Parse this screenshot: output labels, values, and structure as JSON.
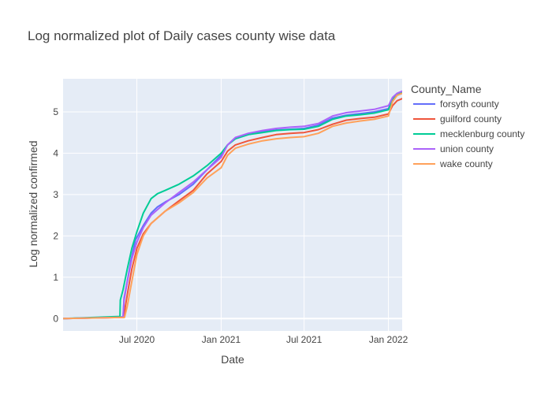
{
  "chart_data": {
    "type": "line",
    "title": "Log normalized plot of Daily cases county wise data",
    "xlabel": "Date",
    "ylabel": "Log normalized confirmed",
    "x_tick_labels": [
      "Jul 2020",
      "Jan 2021",
      "Jul 2021",
      "Jan 2022"
    ],
    "x_tick_dates": [
      "2020-07-01",
      "2021-01-01",
      "2021-07-01",
      "2022-01-01"
    ],
    "xlim": [
      "2020-01-22",
      "2022-01-31"
    ],
    "y_ticks": [
      0,
      1,
      2,
      3,
      4,
      5
    ],
    "ylim": [
      -0.3,
      5.8
    ],
    "grid": true,
    "legend_title": "County_Name",
    "legend_position": "right",
    "series": [
      {
        "name": "forsyth county",
        "color": "#636efa",
        "points": [
          [
            "2020-01-22",
            0
          ],
          [
            "2020-05-25",
            0.03
          ],
          [
            "2020-06-01",
            0.05
          ],
          [
            "2020-06-03",
            0.45
          ],
          [
            "2020-06-10",
            0.9
          ],
          [
            "2020-06-18",
            1.4
          ],
          [
            "2020-06-28",
            1.9
          ],
          [
            "2020-07-15",
            2.25
          ],
          [
            "2020-08-01",
            2.55
          ],
          [
            "2020-08-15",
            2.7
          ],
          [
            "2020-09-01",
            2.82
          ],
          [
            "2020-10-01",
            3.0
          ],
          [
            "2020-11-01",
            3.25
          ],
          [
            "2020-12-01",
            3.6
          ],
          [
            "2021-01-01",
            3.95
          ],
          [
            "2021-01-15",
            4.2
          ],
          [
            "2021-02-01",
            4.35
          ],
          [
            "2021-03-01",
            4.45
          ],
          [
            "2021-04-01",
            4.52
          ],
          [
            "2021-05-01",
            4.56
          ],
          [
            "2021-06-01",
            4.58
          ],
          [
            "2021-07-01",
            4.6
          ],
          [
            "2021-08-01",
            4.68
          ],
          [
            "2021-09-01",
            4.85
          ],
          [
            "2021-10-01",
            4.92
          ],
          [
            "2021-11-01",
            4.96
          ],
          [
            "2021-12-01",
            5.0
          ],
          [
            "2022-01-01",
            5.08
          ],
          [
            "2022-01-10",
            5.3
          ],
          [
            "2022-01-20",
            5.4
          ],
          [
            "2022-01-31",
            5.45
          ]
        ]
      },
      {
        "name": "guilford county",
        "color": "#ef553b",
        "points": [
          [
            "2020-01-22",
            0
          ],
          [
            "2020-06-03",
            0.03
          ],
          [
            "2020-06-06",
            0.3
          ],
          [
            "2020-06-12",
            0.7
          ],
          [
            "2020-06-20",
            1.2
          ],
          [
            "2020-07-01",
            1.7
          ],
          [
            "2020-07-15",
            2.05
          ],
          [
            "2020-08-01",
            2.3
          ],
          [
            "2020-09-01",
            2.6
          ],
          [
            "2020-10-01",
            2.85
          ],
          [
            "2020-11-01",
            3.1
          ],
          [
            "2020-12-01",
            3.5
          ],
          [
            "2021-01-01",
            3.8
          ],
          [
            "2021-01-15",
            4.05
          ],
          [
            "2021-02-01",
            4.2
          ],
          [
            "2021-03-01",
            4.3
          ],
          [
            "2021-04-01",
            4.38
          ],
          [
            "2021-05-01",
            4.45
          ],
          [
            "2021-06-01",
            4.48
          ],
          [
            "2021-07-01",
            4.5
          ],
          [
            "2021-08-01",
            4.57
          ],
          [
            "2021-09-01",
            4.7
          ],
          [
            "2021-10-01",
            4.8
          ],
          [
            "2021-11-01",
            4.84
          ],
          [
            "2021-12-01",
            4.87
          ],
          [
            "2022-01-01",
            4.95
          ],
          [
            "2022-01-10",
            5.15
          ],
          [
            "2022-01-20",
            5.27
          ],
          [
            "2022-01-31",
            5.32
          ]
        ]
      },
      {
        "name": "mecklenburg county",
        "color": "#00cc96",
        "points": [
          [
            "2020-01-22",
            0
          ],
          [
            "2020-05-25",
            0.05
          ],
          [
            "2020-05-26",
            0.45
          ],
          [
            "2020-06-01",
            0.7
          ],
          [
            "2020-06-10",
            1.2
          ],
          [
            "2020-06-20",
            1.7
          ],
          [
            "2020-07-01",
            2.1
          ],
          [
            "2020-07-15",
            2.55
          ],
          [
            "2020-08-01",
            2.9
          ],
          [
            "2020-08-15",
            3.02
          ],
          [
            "2020-09-01",
            3.1
          ],
          [
            "2020-10-01",
            3.25
          ],
          [
            "2020-11-01",
            3.45
          ],
          [
            "2020-12-01",
            3.7
          ],
          [
            "2021-01-01",
            4.0
          ],
          [
            "2021-01-15",
            4.2
          ],
          [
            "2021-02-01",
            4.35
          ],
          [
            "2021-03-01",
            4.45
          ],
          [
            "2021-04-01",
            4.5
          ],
          [
            "2021-05-01",
            4.55
          ],
          [
            "2021-06-01",
            4.57
          ],
          [
            "2021-07-01",
            4.58
          ],
          [
            "2021-08-01",
            4.65
          ],
          [
            "2021-09-01",
            4.82
          ],
          [
            "2021-10-01",
            4.9
          ],
          [
            "2021-11-01",
            4.93
          ],
          [
            "2021-12-01",
            4.97
          ],
          [
            "2022-01-01",
            5.05
          ],
          [
            "2022-01-10",
            5.3
          ],
          [
            "2022-01-20",
            5.42
          ],
          [
            "2022-01-31",
            5.47
          ]
        ]
      },
      {
        "name": "union county",
        "color": "#ab63fa",
        "points": [
          [
            "2020-01-22",
            0
          ],
          [
            "2020-06-01",
            0.03
          ],
          [
            "2020-06-03",
            0.5
          ],
          [
            "2020-06-12",
            1.0
          ],
          [
            "2020-06-20",
            1.45
          ],
          [
            "2020-07-01",
            1.85
          ],
          [
            "2020-07-15",
            2.2
          ],
          [
            "2020-08-01",
            2.5
          ],
          [
            "2020-09-01",
            2.8
          ],
          [
            "2020-10-01",
            3.05
          ],
          [
            "2020-11-01",
            3.3
          ],
          [
            "2020-12-01",
            3.6
          ],
          [
            "2021-01-01",
            3.9
          ],
          [
            "2021-01-15",
            4.2
          ],
          [
            "2021-02-01",
            4.38
          ],
          [
            "2021-03-01",
            4.48
          ],
          [
            "2021-04-01",
            4.55
          ],
          [
            "2021-05-01",
            4.6
          ],
          [
            "2021-06-01",
            4.63
          ],
          [
            "2021-07-01",
            4.65
          ],
          [
            "2021-08-01",
            4.72
          ],
          [
            "2021-09-01",
            4.9
          ],
          [
            "2021-10-01",
            4.98
          ],
          [
            "2021-11-01",
            5.02
          ],
          [
            "2021-12-01",
            5.06
          ],
          [
            "2022-01-01",
            5.15
          ],
          [
            "2022-01-10",
            5.35
          ],
          [
            "2022-01-20",
            5.45
          ],
          [
            "2022-01-31",
            5.5
          ]
        ]
      },
      {
        "name": "wake county",
        "color": "#ffa15a",
        "points": [
          [
            "2020-01-22",
            0
          ],
          [
            "2020-06-04",
            0.03
          ],
          [
            "2020-06-10",
            0.3
          ],
          [
            "2020-06-20",
            0.9
          ],
          [
            "2020-07-01",
            1.55
          ],
          [
            "2020-07-15",
            2.0
          ],
          [
            "2020-08-01",
            2.3
          ],
          [
            "2020-09-01",
            2.6
          ],
          [
            "2020-10-01",
            2.8
          ],
          [
            "2020-11-01",
            3.05
          ],
          [
            "2020-12-01",
            3.4
          ],
          [
            "2021-01-01",
            3.65
          ],
          [
            "2021-01-15",
            3.95
          ],
          [
            "2021-02-01",
            4.12
          ],
          [
            "2021-03-01",
            4.22
          ],
          [
            "2021-04-01",
            4.3
          ],
          [
            "2021-05-01",
            4.35
          ],
          [
            "2021-06-01",
            4.38
          ],
          [
            "2021-07-01",
            4.4
          ],
          [
            "2021-08-01",
            4.48
          ],
          [
            "2021-09-01",
            4.65
          ],
          [
            "2021-10-01",
            4.73
          ],
          [
            "2021-11-01",
            4.78
          ],
          [
            "2021-12-01",
            4.82
          ],
          [
            "2022-01-01",
            4.9
          ],
          [
            "2022-01-10",
            5.25
          ],
          [
            "2022-01-20",
            5.4
          ],
          [
            "2022-01-31",
            5.45
          ]
        ]
      }
    ]
  }
}
